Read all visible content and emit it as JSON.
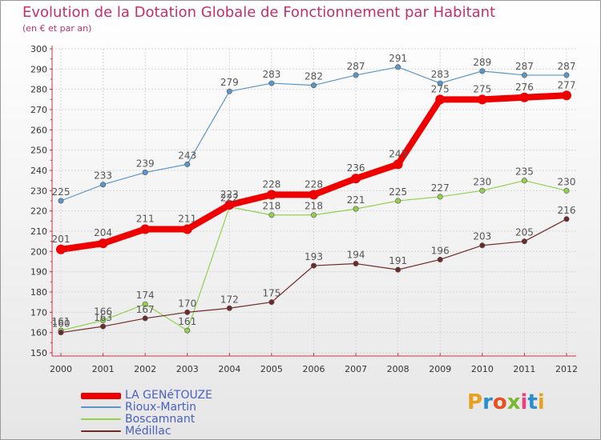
{
  "header": {
    "title": "Evolution de la Dotation Globale de Fonctionnement par Habitant",
    "subtitle": "(en € et par an)"
  },
  "logo": {
    "text": "Proxiti",
    "letter_colors": [
      "#e8a020",
      "#2a8fd0",
      "#e85020",
      "#7ab830",
      "#e84080",
      "#2a8fd0",
      "#e8a020"
    ]
  },
  "colors": {
    "title": "#c0306a",
    "axis": "#cc3344",
    "grid": "#d6d6d6",
    "value_label": "#555555",
    "legend_text": "#4a5fc0"
  },
  "chart_data": {
    "type": "line",
    "title": "Evolution de la Dotation Globale de Fonctionnement par Habitant",
    "subtitle": "(en € et par an)",
    "x": [
      "2000",
      "2001",
      "2002",
      "2003",
      "2004",
      "2005",
      "2006",
      "2007",
      "2008",
      "2009",
      "2010",
      "2011",
      "2012"
    ],
    "ylim": [
      150,
      300
    ],
    "yticks": [
      150,
      160,
      170,
      180,
      190,
      200,
      210,
      220,
      230,
      240,
      250,
      260,
      270,
      280,
      290,
      300
    ],
    "grid": true,
    "legend_position": "bottom-left",
    "series": [
      {
        "name": "LA GENéTOUZE",
        "values": [
          201,
          204,
          211,
          211,
          223,
          228,
          228,
          236,
          243,
          275,
          275,
          276,
          277
        ],
        "color": "#ee0000",
        "emphasis": true
      },
      {
        "name": "Rioux-Martin",
        "values": [
          225,
          233,
          239,
          243,
          279,
          283,
          282,
          287,
          291,
          283,
          289,
          287,
          287
        ],
        "color": "#5a96c8",
        "emphasis": false
      },
      {
        "name": "Boscamnant",
        "values": [
          161,
          166,
          174,
          161,
          222,
          218,
          218,
          221,
          225,
          227,
          230,
          235,
          230
        ],
        "color": "#92d050",
        "emphasis": false
      },
      {
        "name": "Médillac",
        "values": [
          160,
          163,
          167,
          170,
          172,
          175,
          193,
          194,
          191,
          196,
          203,
          205,
          216
        ],
        "color": "#6e2a2a",
        "emphasis": false
      }
    ]
  }
}
